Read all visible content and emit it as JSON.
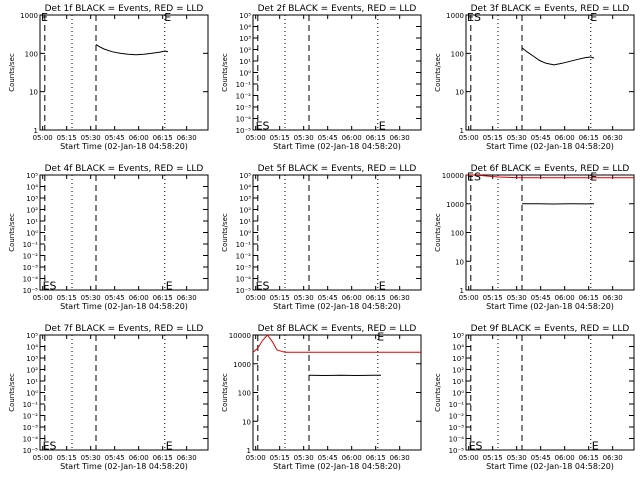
{
  "colors": {
    "events": "#000000",
    "lld": "#e00000",
    "background": "#ffffff",
    "axes": "#000000"
  },
  "chart_data": [
    {
      "type": "line",
      "title": "Det 1f BLACK = Events, RED = LLD",
      "xlabel": "Start Time (02-Jan-18 04:58:20)",
      "ylabel": "Counts/sec",
      "x_ticks": [
        "05:00",
        "05:15",
        "05:30",
        "05:45",
        "06:00",
        "06:15",
        "06:30"
      ],
      "xlim_min": [
        0,
        105
      ],
      "ylog": true,
      "ylim": [
        1,
        1000
      ],
      "y_ticks": [
        "1",
        "10",
        "100",
        "1000"
      ],
      "dashed_lines_min": [
        3,
        35
      ],
      "dotted_lines_min": [
        20,
        78
      ],
      "markers": [
        {
          "text": "E",
          "x_min": 0,
          "y": 900
        },
        {
          "text": "E",
          "x_min": 77,
          "y": 900
        }
      ],
      "series": [
        {
          "name": "Events",
          "color": "#000000",
          "x_min": [
            35,
            37,
            40,
            45,
            50,
            55,
            60,
            65,
            70,
            75,
            78,
            80
          ],
          "values": [
            170,
            150,
            130,
            110,
            100,
            95,
            92,
            95,
            100,
            108,
            115,
            110
          ]
        }
      ]
    },
    {
      "type": "line",
      "title": "Det 2f BLACK = Events, RED = LLD",
      "xlabel": "Start Time (02-Jan-18 04:58:20)",
      "ylabel": "Counts/sec",
      "x_ticks": [
        "05:00",
        "05:15",
        "05:30",
        "05:45",
        "06:00",
        "06:15",
        "06:30"
      ],
      "xlim_min": [
        0,
        105
      ],
      "ylog": true,
      "ylim": [
        1e-05,
        100000.0
      ],
      "y_ticks": [
        "10⁻⁵",
        "10⁻⁴",
        "10⁻³",
        "10⁻²",
        "10⁻¹",
        "10⁰",
        "10¹",
        "10²",
        "10³",
        "10⁴",
        "10⁵"
      ],
      "dashed_lines_min": [
        3,
        35
      ],
      "dotted_lines_min": [
        20,
        78
      ],
      "markers": [
        {
          "text": "ES",
          "x_min": 1,
          "y": 2.5e-05
        },
        {
          "text": "E",
          "x_min": 78,
          "y": 2.5e-05
        }
      ],
      "series": []
    },
    {
      "type": "line",
      "title": "Det 3f BLACK = Events, RED = LLD",
      "xlabel": "Start Time (02-Jan-18 04:58:20)",
      "ylabel": "Counts/sec",
      "x_ticks": [
        "05:00",
        "05:15",
        "05:30",
        "05:45",
        "06:00",
        "06:15",
        "06:30"
      ],
      "xlim_min": [
        0,
        105
      ],
      "ylog": true,
      "ylim": [
        1,
        1000
      ],
      "y_ticks": [
        "1",
        "10",
        "100",
        "1000"
      ],
      "dashed_lines_min": [
        3,
        35
      ],
      "dotted_lines_min": [
        20,
        78
      ],
      "markers": [
        {
          "text": "ES",
          "x_min": 0,
          "y": 900
        },
        {
          "text": "E",
          "x_min": 77,
          "y": 900
        }
      ],
      "series": [
        {
          "name": "Events",
          "color": "#000000",
          "x_min": [
            35,
            38,
            42,
            46,
            50,
            55,
            60,
            65,
            70,
            75,
            78,
            80
          ],
          "values": [
            140,
            110,
            85,
            65,
            55,
            50,
            55,
            62,
            70,
            78,
            80,
            75
          ]
        }
      ]
    },
    {
      "type": "line",
      "title": "Det 4f BLACK = Events, RED = LLD",
      "xlabel": "Start Time (02-Jan-18 04:58:20)",
      "ylabel": "Counts/sec",
      "x_ticks": [
        "05:00",
        "05:15",
        "05:30",
        "05:45",
        "06:00",
        "06:15",
        "06:30"
      ],
      "xlim_min": [
        0,
        105
      ],
      "ylog": true,
      "ylim": [
        1e-05,
        100000.0
      ],
      "y_ticks": [
        "10⁻⁵",
        "10⁻⁴",
        "10⁻³",
        "10⁻²",
        "10⁻¹",
        "10⁰",
        "10¹",
        "10²",
        "10³",
        "10⁴",
        "10⁵"
      ],
      "dashed_lines_min": [
        3,
        35
      ],
      "dotted_lines_min": [
        20,
        78
      ],
      "markers": [
        {
          "text": "ES",
          "x_min": 1,
          "y": 2.5e-05
        },
        {
          "text": "E",
          "x_min": 78,
          "y": 2.5e-05
        }
      ],
      "series": []
    },
    {
      "type": "line",
      "title": "Det 5f BLACK = Events, RED = LLD",
      "xlabel": "Start Time (02-Jan-18 04:58:20)",
      "ylabel": "Counts/sec",
      "x_ticks": [
        "05:00",
        "05:15",
        "05:30",
        "05:45",
        "06:00",
        "06:15",
        "06:30"
      ],
      "xlim_min": [
        0,
        105
      ],
      "ylog": true,
      "ylim": [
        1e-05,
        100000.0
      ],
      "y_ticks": [
        "10⁻⁵",
        "10⁻⁴",
        "10⁻³",
        "10⁻²",
        "10⁻¹",
        "10⁰",
        "10¹",
        "10²",
        "10³",
        "10⁴",
        "10⁵"
      ],
      "dashed_lines_min": [
        3,
        35
      ],
      "dotted_lines_min": [
        20,
        78
      ],
      "markers": [
        {
          "text": "ES",
          "x_min": 1,
          "y": 2.5e-05
        },
        {
          "text": "E",
          "x_min": 78,
          "y": 2.5e-05
        }
      ],
      "series": []
    },
    {
      "type": "line",
      "title": "Det 6f BLACK = Events, RED = LLD",
      "xlabel": "Start Time (02-Jan-18 04:58:20)",
      "ylabel": "Counts/sec",
      "x_ticks": [
        "05:00",
        "05:15",
        "05:30",
        "05:45",
        "06:00",
        "06:15",
        "06:30"
      ],
      "xlim_min": [
        0,
        105
      ],
      "ylog": true,
      "ylim": [
        1,
        10000
      ],
      "y_ticks": [
        "1",
        "10",
        "100",
        "1000",
        "10000"
      ],
      "dashed_lines_min": [
        3,
        35
      ],
      "dotted_lines_min": [
        20,
        78
      ],
      "markers": [
        {
          "text": "ES",
          "x_min": 0,
          "y": 9000
        },
        {
          "text": "E",
          "x_min": 77,
          "y": 9000
        }
      ],
      "series": [
        {
          "name": "Events",
          "color": "#000000",
          "x_min": [
            35,
            45,
            55,
            65,
            75,
            80
          ],
          "values": [
            1000,
            1000,
            980,
            1000,
            990,
            1000
          ]
        },
        {
          "name": "LLD",
          "color": "#e00000",
          "x_min": [
            0,
            5,
            10,
            20,
            35,
            50,
            80,
            105
          ],
          "values": [
            9900,
            9900,
            9500,
            8500,
            8000,
            8000,
            8000,
            8000
          ]
        }
      ]
    },
    {
      "type": "line",
      "title": "Det 7f BLACK = Events, RED = LLD",
      "xlabel": "Start Time (02-Jan-18 04:58:20)",
      "ylabel": "Counts/sec",
      "x_ticks": [
        "05:00",
        "05:15",
        "05:30",
        "05:45",
        "06:00",
        "06:15",
        "06:30"
      ],
      "xlim_min": [
        0,
        105
      ],
      "ylog": true,
      "ylim": [
        1e-05,
        100000.0
      ],
      "y_ticks": [
        "10⁻⁵",
        "10⁻⁴",
        "10⁻³",
        "10⁻²",
        "10⁻¹",
        "10⁰",
        "10¹",
        "10²",
        "10³",
        "10⁴",
        "10⁵"
      ],
      "dashed_lines_min": [
        3,
        35
      ],
      "dotted_lines_min": [
        20,
        78
      ],
      "markers": [
        {
          "text": "ES",
          "x_min": 1,
          "y": 2.5e-05
        },
        {
          "text": "E",
          "x_min": 78,
          "y": 2.5e-05
        }
      ],
      "series": []
    },
    {
      "type": "line",
      "title": "Det 8f BLACK = Events, RED = LLD",
      "xlabel": "Start Time (02-Jan-18 04:58:20)",
      "ylabel": "Counts/sec",
      "x_ticks": [
        "05:00",
        "05:15",
        "05:30",
        "05:45",
        "06:00",
        "06:15",
        "06:30"
      ],
      "xlim_min": [
        0,
        105
      ],
      "ylog": true,
      "ylim": [
        1,
        10000
      ],
      "y_ticks": [
        "1",
        "10",
        "100",
        "1000",
        "10000"
      ],
      "dashed_lines_min": [
        3,
        35
      ],
      "dotted_lines_min": [
        20,
        78
      ],
      "markers": [
        {
          "text": "E",
          "x_min": 77,
          "y": 9000
        }
      ],
      "series": [
        {
          "name": "Events",
          "color": "#000000",
          "x_min": [
            35,
            45,
            55,
            65,
            75,
            80
          ],
          "values": [
            400,
            390,
            395,
            390,
            400,
            395
          ]
        },
        {
          "name": "LLD",
          "color": "#e00000",
          "x_min": [
            0,
            3,
            6,
            9,
            12,
            15,
            20,
            35,
            60,
            105
          ],
          "values": [
            2500,
            3500,
            6500,
            12000,
            6000,
            3000,
            2500,
            2500,
            2500,
            2500
          ]
        }
      ]
    },
    {
      "type": "line",
      "title": "Det 9f BLACK = Events, RED = LLD",
      "xlabel": "Start Time (02-Jan-18 04:58:20)",
      "ylabel": "Counts/sec",
      "x_ticks": [
        "05:00",
        "05:15",
        "05:30",
        "05:45",
        "06:00",
        "06:15",
        "06:30"
      ],
      "xlim_min": [
        0,
        105
      ],
      "ylog": true,
      "ylim": [
        1e-05,
        100000.0
      ],
      "y_ticks": [
        "10⁻⁵",
        "10⁻⁴",
        "10⁻³",
        "10⁻²",
        "10⁻¹",
        "10⁰",
        "10¹",
        "10²",
        "10³",
        "10⁴",
        "10⁵"
      ],
      "dashed_lines_min": [
        3,
        35
      ],
      "dotted_lines_min": [
        20,
        78
      ],
      "markers": [
        {
          "text": "ES",
          "x_min": 1,
          "y": 2.5e-05
        },
        {
          "text": "E",
          "x_min": 78,
          "y": 2.5e-05
        }
      ],
      "series": []
    }
  ]
}
